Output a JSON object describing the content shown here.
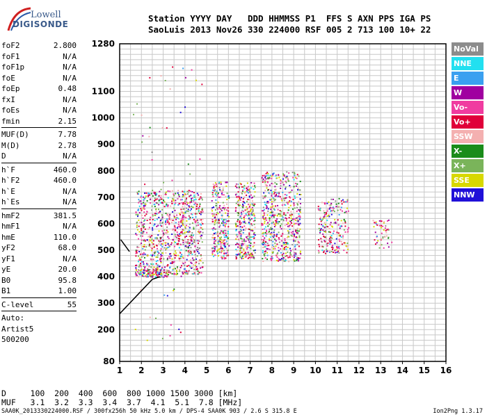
{
  "logo": {
    "word1": "Lowell",
    "word2": "DIGISONDE"
  },
  "header": {
    "line1": "Station YYYY DAY   DDD HHMMSS P1  FFS S AXN PPS IGA PS",
    "line2": "SaoLuis 2013 Nov26 330 224000 RSF 005 2 713 100 10+ 22"
  },
  "params": {
    "group1": [
      {
        "k": "foF2",
        "v": "2.800"
      },
      {
        "k": "foF1",
        "v": "N/A"
      },
      {
        "k": "foF1p",
        "v": "N/A"
      },
      {
        "k": "foE",
        "v": "N/A"
      },
      {
        "k": "foEp",
        "v": "0.48"
      },
      {
        "k": "fxI",
        "v": "N/A"
      },
      {
        "k": "foEs",
        "v": "N/A"
      },
      {
        "k": "fmin",
        "v": "2.15"
      }
    ],
    "group2": [
      {
        "k": "MUF(D)",
        "v": "7.78"
      },
      {
        "k": "M(D)",
        "v": "2.78"
      },
      {
        "k": "D",
        "v": "N/A"
      }
    ],
    "group3": [
      {
        "k": "h`F",
        "v": "460.0"
      },
      {
        "k": "h`F2",
        "v": "460.0"
      },
      {
        "k": "h`E",
        "v": "N/A"
      },
      {
        "k": "h`Es",
        "v": "N/A"
      }
    ],
    "group4": [
      {
        "k": "hmF2",
        "v": "381.5"
      },
      {
        "k": "hmF1",
        "v": "N/A"
      },
      {
        "k": "hmE",
        "v": "110.0"
      },
      {
        "k": "yF2",
        "v": "68.0"
      },
      {
        "k": "yF1",
        "v": "N/A"
      },
      {
        "k": "yE",
        "v": "20.0"
      },
      {
        "k": "B0",
        "v": "95.8"
      },
      {
        "k": "B1",
        "v": "1.00"
      }
    ],
    "clevel": {
      "k": "C-level",
      "v": "55"
    },
    "auto": [
      "Auto:",
      "Artist5",
      "500200"
    ]
  },
  "legend": [
    {
      "label": "NoVal",
      "color": "#8c8c8c"
    },
    {
      "label": "NNE",
      "color": "#22e0f0"
    },
    {
      "label": "E",
      "color": "#3aa0f0"
    },
    {
      "label": "W",
      "color": "#a000a0"
    },
    {
      "label": "Vo-",
      "color": "#f03ca0"
    },
    {
      "label": "Vo+",
      "color": "#e0003a"
    },
    {
      "label": "SSW",
      "color": "#f4b0b0"
    },
    {
      "label": "X-",
      "color": "#1a8c1a"
    },
    {
      "label": "X+",
      "color": "#7ab45a"
    },
    {
      "label": "SSE",
      "color": "#d8d800"
    },
    {
      "label": "NNW",
      "color": "#2010d8"
    }
  ],
  "chart_data": {
    "type": "scatter",
    "title": "",
    "xlabel": "",
    "ylabel": "",
    "xlim": [
      1,
      16
    ],
    "ylim": [
      80,
      1280
    ],
    "x_ticks": [
      1,
      2,
      3,
      4,
      5,
      6,
      7,
      8,
      9,
      10,
      11,
      12,
      13,
      14,
      15,
      16
    ],
    "y_ticks": [
      80,
      200,
      300,
      400,
      500,
      600,
      700,
      800,
      900,
      1000,
      1100,
      1280
    ],
    "grid": true,
    "clusters": [
      {
        "x0": 1.7,
        "x1": 4.8,
        "y0": 410,
        "y1": 730,
        "density": 900
      },
      {
        "x0": 1.7,
        "x1": 3.2,
        "y0": 400,
        "y1": 430,
        "density": 120
      },
      {
        "x0": 5.2,
        "x1": 6.0,
        "y0": 470,
        "y1": 760,
        "density": 260
      },
      {
        "x0": 6.3,
        "x1": 7.2,
        "y0": 470,
        "y1": 760,
        "density": 320
      },
      {
        "x0": 7.5,
        "x1": 9.3,
        "y0": 460,
        "y1": 800,
        "density": 600
      },
      {
        "x0": 10.1,
        "x1": 11.5,
        "y0": 490,
        "y1": 700,
        "density": 220
      },
      {
        "x0": 12.6,
        "x1": 13.5,
        "y0": 510,
        "y1": 620,
        "density": 50
      }
    ],
    "trace_profile": [
      [
        1,
        260
      ],
      [
        2.5,
        390
      ],
      [
        2.85,
        400
      ]
    ],
    "trace_bottomside": [
      [
        1.05,
        540
      ],
      [
        1.45,
        495
      ]
    ]
  },
  "footer": {
    "line1": "D     100  200  400  600  800 1000 1500 3000 [km]",
    "line2": "MUF   3.1  3.2  3.3  3.4  3.7  4.1  5.1  7.8 [MHz]"
  },
  "bottomline": {
    "left": "SAA0K_2013330224000.RSF / 300fx256h 50 kHz 5.0 km / DPS-4 SAA0K 903 / 2.6 S 315.8 E",
    "right": "Ion2Png 1.3.17"
  }
}
